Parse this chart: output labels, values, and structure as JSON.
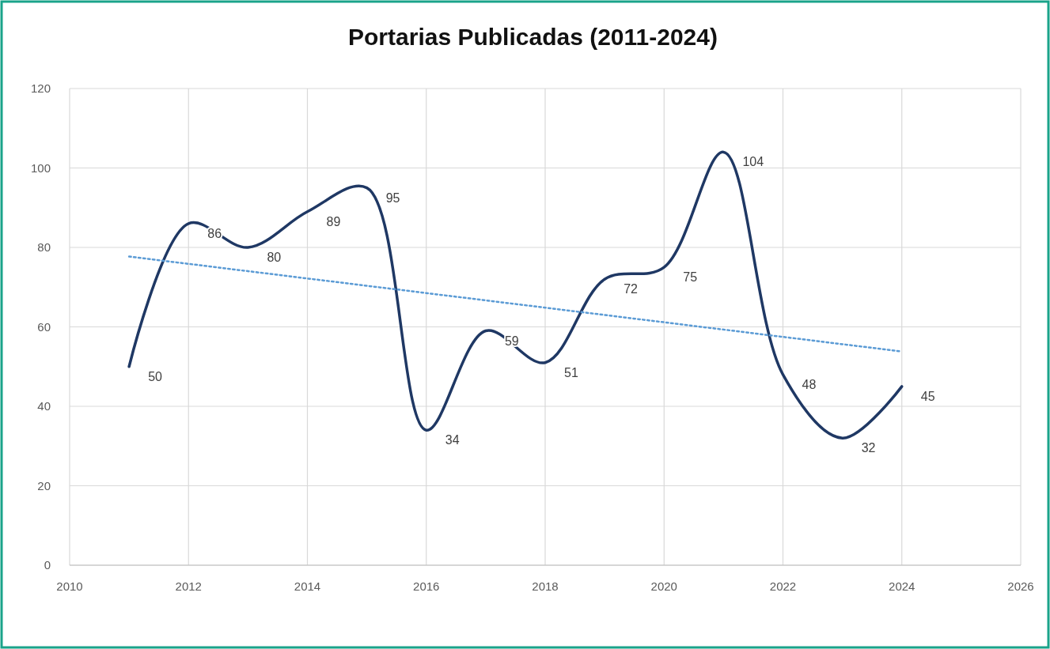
{
  "chart_data": {
    "type": "line",
    "title": "Portarias Publicadas (2011-2024)",
    "x": [
      2011,
      2012,
      2013,
      2014,
      2015,
      2016,
      2017,
      2018,
      2019,
      2020,
      2021,
      2022,
      2023,
      2024
    ],
    "series": [
      {
        "color": "#1f3864",
        "values": [
          50,
          86,
          80,
          89,
          95,
          34,
          59,
          51,
          72,
          75,
          104,
          48,
          32,
          45
        ],
        "value_labels": [
          "50",
          "86",
          "80",
          "89",
          "95",
          "34",
          "59",
          "51",
          "72",
          "75",
          "104",
          "48",
          "32",
          "45"
        ]
      },
      {
        "type": "line",
        "color": "#5b9bd5",
        "line_style": "dotted",
        "x": [
          2011,
          2024
        ],
        "values": [
          77.7,
          53.8
        ]
      }
    ],
    "xlim": [
      2010,
      2026
    ],
    "xticks": [
      2010,
      2012,
      2014,
      2016,
      2018,
      2020,
      2022,
      2024,
      2026
    ],
    "ylim": [
      0,
      120
    ],
    "yticks": [
      0,
      20,
      40,
      60,
      80,
      100,
      120
    ],
    "grid": true,
    "line_style": "solid",
    "marker": "none"
  }
}
